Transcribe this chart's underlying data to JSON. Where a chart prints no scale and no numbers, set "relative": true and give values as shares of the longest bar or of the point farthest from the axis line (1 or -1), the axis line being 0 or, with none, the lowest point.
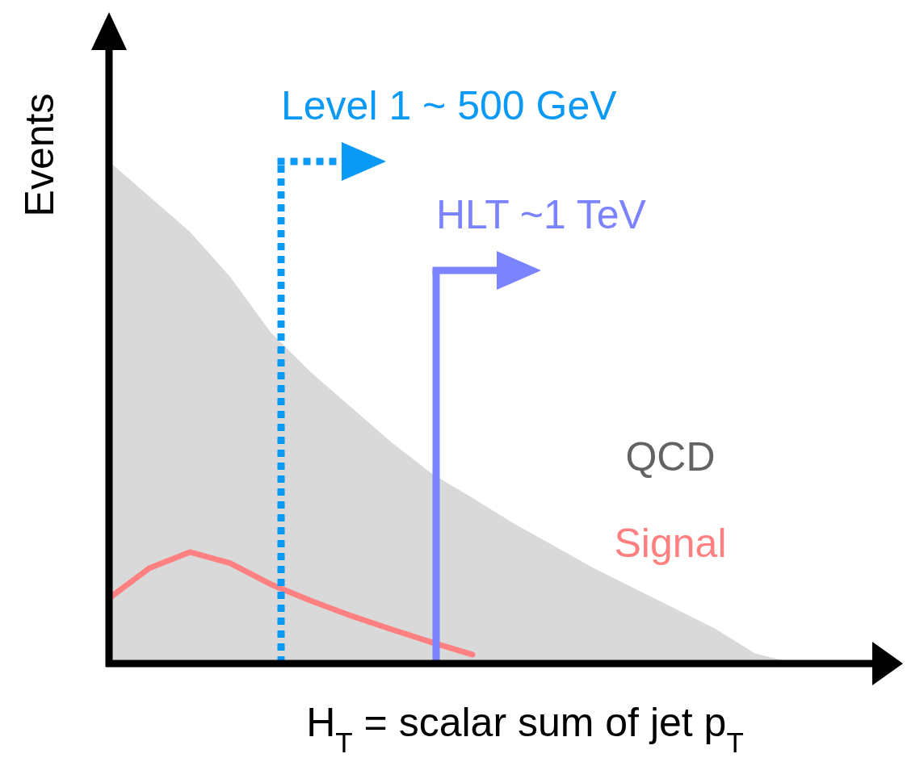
{
  "chart_data": {
    "type": "area",
    "relative": true,
    "xlabel": "H$_{T}$ = scalar sum of jet p$_{T}$",
    "ylabel": "Events",
    "categories": [
      null,
      null,
      null,
      null,
      null,
      null,
      null,
      null,
      null,
      null,
      null,
      null,
      null,
      null,
      null,
      null,
      null,
      null
    ],
    "series": [
      {
        "name": "QCD",
        "color": "#d9d9d9",
        "values": [
          1,
          0.93,
          0.86,
          0.77,
          0.66,
          0.58,
          0.51,
          0.44,
          0.378,
          0.33,
          0.28,
          0.235,
          0.19,
          0.15,
          0.11,
          0.07,
          0.02,
          0
        ]
      },
      {
        "name": "Signal",
        "type": "line",
        "color": "#ff8080",
        "values": [
          0.13,
          0.19,
          0.222,
          0.2,
          0.158,
          0.125,
          0.095,
          0.068,
          0.042,
          0.018,
          null,
          null,
          null,
          null,
          null,
          null,
          null,
          null
        ]
      }
    ],
    "annotations": [
      "Level 1 ~ 500 GeV",
      "HLT ~1 TeV"
    ]
  }
}
